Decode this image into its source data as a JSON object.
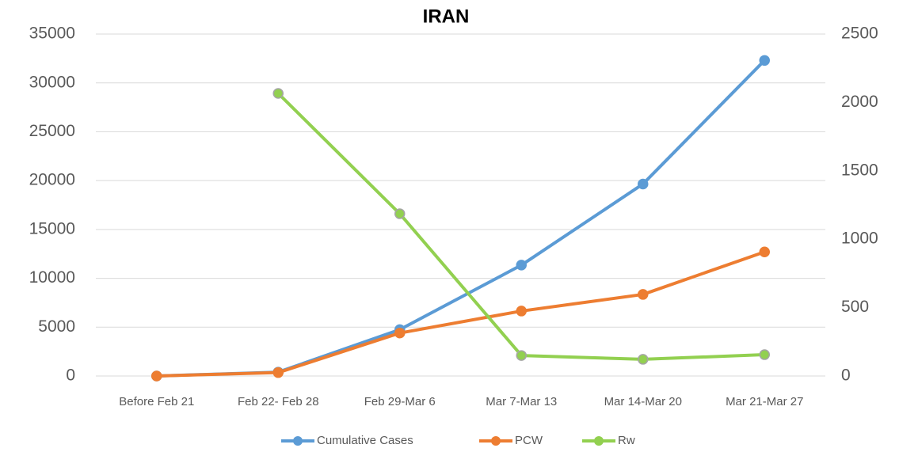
{
  "chart_data": {
    "type": "line",
    "title": "IRAN",
    "categories": [
      "Before Feb 21",
      "Feb 22- Feb 28",
      "Feb 29-Mar 6",
      "Mar 7-Mar 13",
      "Mar 14-Mar 20",
      "Mar 21-Mar 27"
    ],
    "series": [
      {
        "name": "Cumulative Cases",
        "color": "#5b9bd5",
        "values": [
          0,
          400,
          4750,
          11350,
          19650,
          32300
        ]
      },
      {
        "name": "PCW",
        "color": "#ed7d31",
        "values": [
          0,
          350,
          4400,
          6650,
          8350,
          12700
        ]
      },
      {
        "name": "Rw",
        "color": "#92d050",
        "axis": "y2",
        "values": [
          null,
          2066,
          1186,
          150,
          122,
          156
        ]
      }
    ],
    "ylim": [
      0,
      35000
    ],
    "yticks": [
      0,
      5000,
      10000,
      15000,
      20000,
      25000,
      30000,
      35000
    ],
    "y2lim": [
      0,
      2500
    ],
    "y2ticks": [
      0,
      500,
      1000,
      1500,
      2000,
      2500
    ],
    "grid": true,
    "legend": "bottom"
  }
}
